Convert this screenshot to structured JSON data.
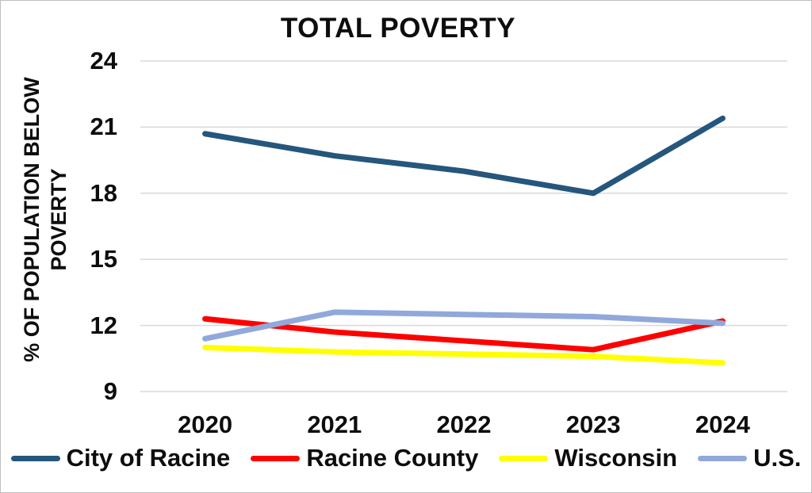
{
  "chart_data": {
    "type": "line",
    "title": "TOTAL POVERTY",
    "xlabel": "",
    "ylabel": "% OF POPULATION BELOW POVERTY",
    "ylabel_lines": [
      "% OF POPULATION BELOW",
      "POVERTY"
    ],
    "categories": [
      "2020",
      "2021",
      "2022",
      "2023",
      "2024"
    ],
    "yticks": [
      24,
      21,
      18,
      15,
      12,
      9
    ],
    "ylim": [
      9,
      24
    ],
    "grid": true,
    "legend_position": "bottom",
    "series": [
      {
        "name": "City of Racine",
        "color": "#25567C",
        "values": [
          20.7,
          19.7,
          19.0,
          18.0,
          21.4
        ]
      },
      {
        "name": "Racine County",
        "color": "#FF0000",
        "values": [
          12.3,
          11.7,
          11.3,
          10.9,
          12.2
        ]
      },
      {
        "name": "Wisconsin",
        "color": "#FFFF00",
        "values": [
          11.0,
          10.8,
          10.7,
          10.6,
          10.3
        ]
      },
      {
        "name": "U.S.",
        "color": "#91A8DB",
        "values": [
          11.4,
          12.6,
          12.5,
          12.4,
          12.1
        ]
      }
    ],
    "colors": {
      "grid": "#D9D9D9",
      "text": "#0D0D0D",
      "background": "#FFFFFF",
      "border": "#BFBFBF"
    }
  }
}
